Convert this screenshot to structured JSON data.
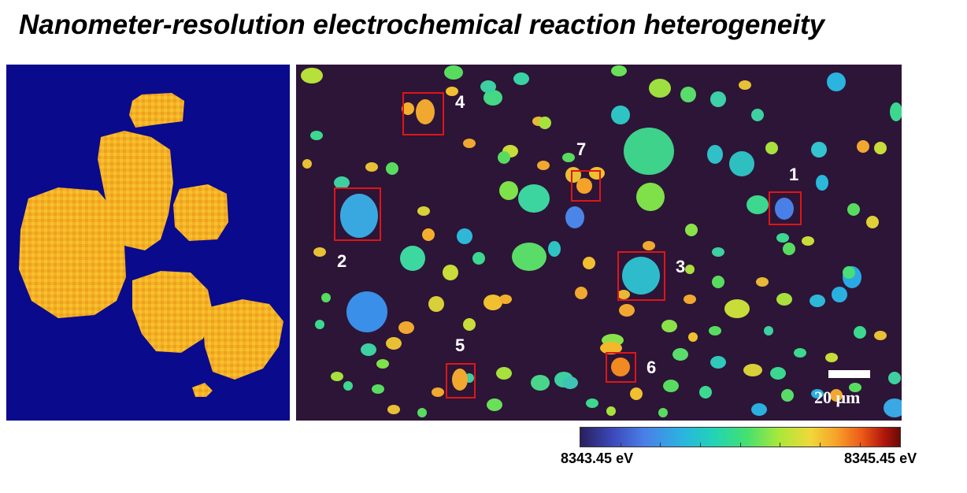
{
  "title": "Nanometer-resolution electrochemical reaction heterogeneity",
  "colors": {
    "left_background": "#0a0a8c",
    "right_background": "#2d1537",
    "box_outline": "#e01515",
    "colormap": [
      "#2a1f5e",
      "#3b48b8",
      "#4a7fe8",
      "#2ab4e0",
      "#22d4b4",
      "#44e070",
      "#a8e83a",
      "#f0d83a",
      "#f7a22a",
      "#ec5a18",
      "#b0160c",
      "#6a0a08"
    ]
  },
  "labels": [
    "1",
    "2",
    "3",
    "4",
    "5",
    "6",
    "7"
  ],
  "scale_bar": {
    "label": "20 μm"
  },
  "colorbar": {
    "min_label": "8343.45 eV",
    "max_label": "8345.45 eV"
  }
}
